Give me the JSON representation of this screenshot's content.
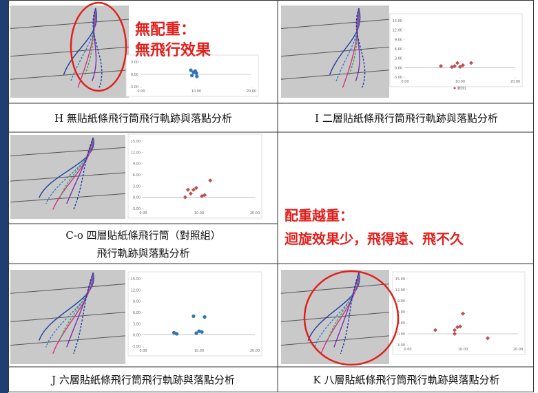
{
  "panels": [
    {
      "caption": [
        "H 無貼紙條飛行筒飛行軌跡與落點分析"
      ],
      "plot": {
        "color": "#2e75b6",
        "marker": "circle",
        "x": [
          9,
          9.5,
          10,
          9.2,
          10.1,
          9.8
        ],
        "y": [
          1,
          0.5,
          0.3,
          -0.3,
          -0.5,
          0.8
        ],
        "xlim": [
          0,
          20
        ],
        "ylim": [
          -3,
          3
        ],
        "xticks": [
          {
            "value": 0,
            "label": "0.00"
          },
          {
            "value": 10,
            "label": "10.00"
          },
          {
            "value": 20,
            "label": "20.00"
          }
        ],
        "yticks": [
          {
            "value": 3,
            "label": "3.00"
          },
          {
            "value": 0,
            "label": "0.00"
          },
          {
            "value": -3,
            "label": "-3.00"
          }
        ]
      }
    },
    {
      "caption": [
        "I 二層貼紙條飛行筒飛行軌跡與落點分析"
      ],
      "plot": {
        "color": "#c0504d",
        "marker": "diamond",
        "legend": "數列1",
        "x": [
          6.5,
          8.5,
          9,
          9.5,
          10,
          10.5,
          12
        ],
        "y": [
          0.5,
          0.2,
          0.5,
          1.5,
          0.3,
          0.8,
          1.5
        ],
        "xlim": [
          0,
          20
        ],
        "ylim": [
          -3,
          15
        ],
        "xticks": [
          {
            "value": 0,
            "label": "0.00"
          },
          {
            "value": 10,
            "label": "10.00"
          },
          {
            "value": 20,
            "label": "20.00"
          }
        ],
        "yticks": [
          {
            "value": 15,
            "label": "15.00"
          },
          {
            "value": 12,
            "label": "12.00"
          },
          {
            "value": 9,
            "label": "9.00"
          },
          {
            "value": 6,
            "label": "6.00"
          },
          {
            "value": 3,
            "label": "3.00"
          },
          {
            "value": 0,
            "label": "0.00"
          },
          {
            "value": -3,
            "label": "-3.00"
          }
        ]
      }
    },
    {
      "caption": [
        "C-o 四層貼紙條飛行筒（對照組）",
        "飛行軌跡與落點分析"
      ],
      "plot": {
        "color": "#c0504d",
        "marker": "diamond",
        "x": [
          7.5,
          8,
          8.5,
          9,
          9.5,
          10.5,
          11,
          12
        ],
        "y": [
          0,
          2,
          1,
          2,
          2.5,
          0.3,
          0.6,
          4.5
        ],
        "xlim": [
          0,
          20
        ],
        "ylim": [
          -3,
          15
        ],
        "xticks": [
          {
            "value": 0,
            "label": "0.00"
          },
          {
            "value": 10,
            "label": "10.00"
          },
          {
            "value": 20,
            "label": "20.00"
          }
        ],
        "yticks": [
          {
            "value": 15,
            "label": "15.00"
          },
          {
            "value": 12,
            "label": "12.00"
          },
          {
            "value": 9,
            "label": "9.00"
          },
          {
            "value": 6,
            "label": "6.00"
          },
          {
            "value": 3,
            "label": "3.00"
          },
          {
            "value": 0,
            "label": "0.00"
          },
          {
            "value": -3,
            "label": "-3.00"
          }
        ]
      }
    },
    {
      "caption": [
        "J 六層貼紙條飛行筒飛行軌跡與落點分析"
      ],
      "plot": {
        "color": "#2e75b6",
        "marker": "circle",
        "x": [
          5.5,
          6,
          9,
          9.5,
          10,
          10.5,
          11
        ],
        "y": [
          0.6,
          0.3,
          5,
          0.5,
          1,
          0.8,
          4.8
        ],
        "xlim": [
          0,
          20
        ],
        "ylim": [
          -3,
          15
        ],
        "xticks": [
          {
            "value": 0,
            "label": "0.00"
          },
          {
            "value": 10,
            "label": "10.00"
          },
          {
            "value": 20,
            "label": "20.00"
          }
        ],
        "yticks": [
          {
            "value": 15,
            "label": "15.00"
          },
          {
            "value": 12,
            "label": "12.00"
          },
          {
            "value": 9,
            "label": "9.00"
          },
          {
            "value": 6,
            "label": "6.00"
          },
          {
            "value": 3,
            "label": "3.00"
          },
          {
            "value": 0,
            "label": "0.00"
          },
          {
            "value": -3,
            "label": "-3.00"
          }
        ]
      }
    },
    {
      "caption": [
        "K 八層貼紙條飛行筒飛行軌跡與落點分析"
      ],
      "plot": {
        "color": "#c0504d",
        "marker": "diamond",
        "x": [
          5,
          8.5,
          8.5,
          9,
          9.5,
          10,
          14.5
        ],
        "y": [
          1,
          0,
          1,
          1.8,
          2,
          5.5,
          -1.2
        ],
        "xlim": [
          0,
          20
        ],
        "ylim": [
          -3,
          15
        ],
        "xticks": [
          {
            "value": 0,
            "label": "0.00"
          },
          {
            "value": 10,
            "label": "10.00"
          },
          {
            "value": 20,
            "label": "20.00"
          }
        ],
        "yticks": [
          {
            "value": 15,
            "label": "15.00"
          },
          {
            "value": 12,
            "label": "12.00"
          },
          {
            "value": 9,
            "label": "9.00"
          },
          {
            "value": 6,
            "label": "6.00"
          },
          {
            "value": 3,
            "label": "3.00"
          },
          {
            "value": 0,
            "label": "0.00"
          },
          {
            "value": -3,
            "label": "-3.00"
          }
        ]
      }
    }
  ],
  "annotations": {
    "left": [
      "無配重：",
      "無飛行效果"
    ],
    "right": [
      "配重越重：",
      "迴旋效果少，飛得遠、飛不久"
    ]
  }
}
